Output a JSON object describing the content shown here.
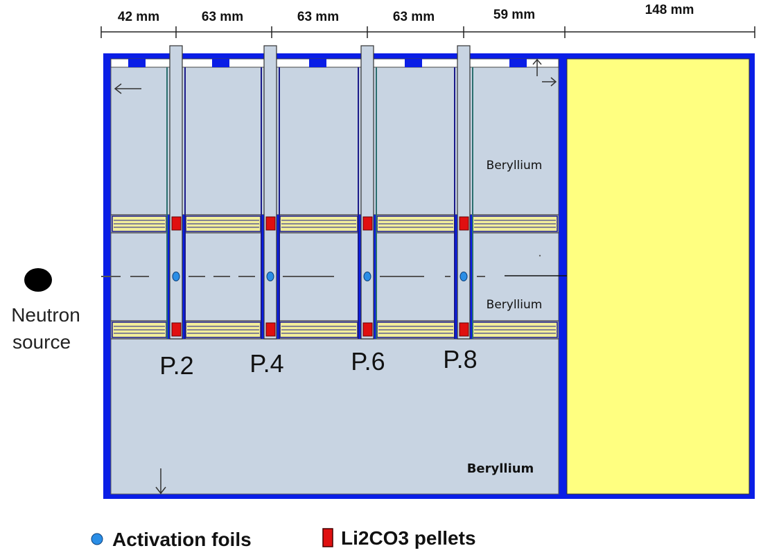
{
  "dimensions": [
    "42 mm",
    "63 mm",
    "63 mm",
    "63 mm",
    "59 mm",
    "148 mm"
  ],
  "regions": {
    "beryllium_upper": "Beryllium",
    "beryllium_middle": "Beryllium",
    "beryllium_lower": "Beryllium"
  },
  "positions": [
    "P.2",
    "P.4",
    "P.6",
    "P.8"
  ],
  "source": {
    "line1": "Neutron",
    "line2": "source"
  },
  "legend": {
    "foils": "Activation foils",
    "pellets": "Li2CO3 pellets"
  },
  "colors": {
    "frame": "#0a1ee6",
    "beryllium": "#c8d4e2",
    "reflector": "#ffff80",
    "pellet": "#e01010",
    "foil": "#2a8ee6",
    "layer_stripe": "#f2ee9a"
  }
}
